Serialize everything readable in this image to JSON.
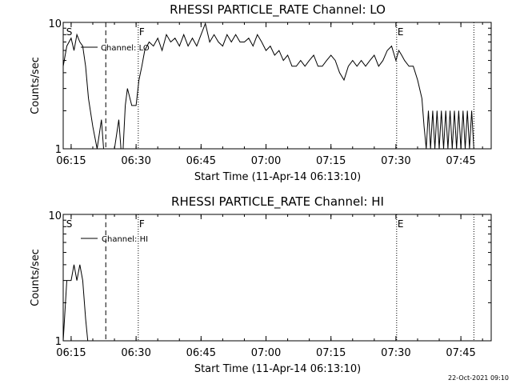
{
  "footer_timestamp": "22-Oct-2021 09:10",
  "chart_data": [
    {
      "type": "line",
      "title": "RHESSI PARTICLE_RATE Channel: LO",
      "xlabel": "Start Time (11-Apr-14 06:13:10)",
      "ylabel": "Counts/sec",
      "yscale": "log",
      "ylim": [
        1,
        10
      ],
      "xlim": [
        "06:13:10",
        "07:52:00"
      ],
      "xticks": [
        "06:15",
        "06:30",
        "06:45",
        "07:00",
        "07:15",
        "07:30",
        "07:45"
      ],
      "yticks": [
        "1",
        "10"
      ],
      "legend": "Channel: LO",
      "markers": [
        {
          "label": "S",
          "time": "06:13:40",
          "style": "none"
        },
        {
          "label": "",
          "time": "06:23:00",
          "style": "dashed"
        },
        {
          "label": "F",
          "time": "06:30:30",
          "style": "dotted"
        },
        {
          "label": "E",
          "time": "07:30:10",
          "style": "dotted"
        },
        {
          "label": "",
          "time": "07:48:00",
          "style": "dotted"
        }
      ],
      "series": [
        {
          "name": "LO",
          "x": [
            "06:13:10",
            "06:14:00",
            "06:15:00",
            "06:15:40",
            "06:16:20",
            "06:17:00",
            "06:17:40",
            "06:18:20",
            "06:19:00",
            "06:20:00",
            "06:21:00",
            "06:22:00",
            "06:22:30",
            "06:23:00",
            "06:25:00",
            "06:26:00",
            "06:26:30",
            "06:27:00",
            "06:27:30",
            "06:28:00",
            "06:29:00",
            "06:30:00",
            "06:30:40",
            "06:31:20",
            "06:32:00",
            "06:33:00",
            "06:34:00",
            "06:35:00",
            "06:36:00",
            "06:37:00",
            "06:38:00",
            "06:39:00",
            "06:40:00",
            "06:41:00",
            "06:42:00",
            "06:43:00",
            "06:44:00",
            "06:45:00",
            "06:46:00",
            "06:47:00",
            "06:48:00",
            "06:49:00",
            "06:50:00",
            "06:51:00",
            "06:52:00",
            "06:53:00",
            "06:54:00",
            "06:55:00",
            "06:56:00",
            "06:57:00",
            "06:58:00",
            "06:59:00",
            "07:00:00",
            "07:01:00",
            "07:02:00",
            "07:03:00",
            "07:04:00",
            "07:05:00",
            "07:06:00",
            "07:07:00",
            "07:08:00",
            "07:09:00",
            "07:10:00",
            "07:11:00",
            "07:12:00",
            "07:13:00",
            "07:14:00",
            "07:15:00",
            "07:16:00",
            "07:17:00",
            "07:18:00",
            "07:19:00",
            "07:20:00",
            "07:21:00",
            "07:22:00",
            "07:23:00",
            "07:24:00",
            "07:25:00",
            "07:26:00",
            "07:27:00",
            "07:28:00",
            "07:29:00",
            "07:30:00",
            "07:30:40",
            "07:31:20",
            "07:32:00",
            "07:33:00",
            "07:34:00",
            "07:35:00",
            "07:36:00",
            "07:36:30",
            "07:37:00",
            "07:37:30",
            "07:38:00",
            "07:38:30",
            "07:39:00",
            "07:39:30",
            "07:40:00",
            "07:40:30",
            "07:41:00",
            "07:41:30",
            "07:42:00",
            "07:42:30",
            "07:43:00",
            "07:43:30",
            "07:44:00",
            "07:44:30",
            "07:45:00",
            "07:45:30",
            "07:46:00",
            "07:46:30",
            "07:47:00",
            "07:47:30",
            "07:48:00"
          ],
          "y": [
            4.5,
            6.5,
            7.5,
            6.0,
            8.0,
            7.0,
            6.5,
            4.5,
            2.5,
            1.5,
            1.0,
            1.7,
            1.0,
            1.0,
            1.0,
            1.7,
            1.0,
            1.0,
            2.2,
            3.0,
            2.2,
            2.2,
            3.5,
            4.5,
            6.0,
            7.0,
            6.5,
            7.5,
            6.0,
            8.0,
            7.0,
            7.5,
            6.5,
            8.0,
            6.5,
            7.5,
            6.5,
            8.0,
            9.8,
            7.0,
            8.0,
            7.0,
            6.5,
            8.0,
            7.0,
            8.0,
            7.0,
            7.0,
            7.5,
            6.5,
            8.0,
            7.0,
            6.0,
            6.5,
            5.5,
            6.0,
            5.0,
            5.5,
            4.5,
            4.5,
            5.0,
            4.5,
            5.0,
            5.5,
            4.5,
            4.5,
            5.0,
            5.5,
            5.0,
            4.0,
            3.5,
            4.5,
            5.0,
            4.5,
            5.0,
            4.5,
            5.0,
            5.5,
            4.5,
            5.0,
            6.0,
            6.5,
            5.0,
            6.0,
            5.5,
            5.0,
            4.5,
            4.5,
            3.5,
            2.5,
            1.5,
            1.0,
            2.0,
            1.0,
            2.0,
            1.0,
            2.0,
            1.0,
            2.0,
            1.0,
            2.0,
            1.0,
            2.0,
            1.0,
            2.0,
            1.0,
            2.0,
            1.0,
            2.0,
            1.0,
            2.0,
            1.0,
            2.0,
            1.0
          ]
        }
      ]
    },
    {
      "type": "line",
      "title": "RHESSI PARTICLE_RATE Channel: HI",
      "xlabel": "Start Time (11-Apr-14 06:13:10)",
      "ylabel": "Counts/sec",
      "yscale": "log",
      "ylim": [
        1,
        10
      ],
      "xlim": [
        "06:13:10",
        "07:52:00"
      ],
      "xticks": [
        "06:15",
        "06:30",
        "06:45",
        "07:00",
        "07:15",
        "07:30",
        "07:45"
      ],
      "yticks": [
        "1",
        "10"
      ],
      "legend": "Channel: HI",
      "markers": [
        {
          "label": "S",
          "time": "06:13:40",
          "style": "none"
        },
        {
          "label": "",
          "time": "06:23:00",
          "style": "dashed"
        },
        {
          "label": "F",
          "time": "06:30:30",
          "style": "dotted"
        },
        {
          "label": "E",
          "time": "07:30:10",
          "style": "dotted"
        },
        {
          "label": "",
          "time": "07:48:00",
          "style": "dotted"
        }
      ],
      "series": [
        {
          "name": "HI",
          "x": [
            "06:13:10",
            "06:14:00",
            "06:15:00",
            "06:15:40",
            "06:16:20",
            "06:17:00",
            "06:17:40",
            "06:18:20",
            "06:18:50"
          ],
          "y": [
            1.0,
            3.0,
            3.0,
            4.0,
            3.0,
            4.0,
            3.0,
            1.5,
            1.0
          ]
        }
      ]
    }
  ]
}
